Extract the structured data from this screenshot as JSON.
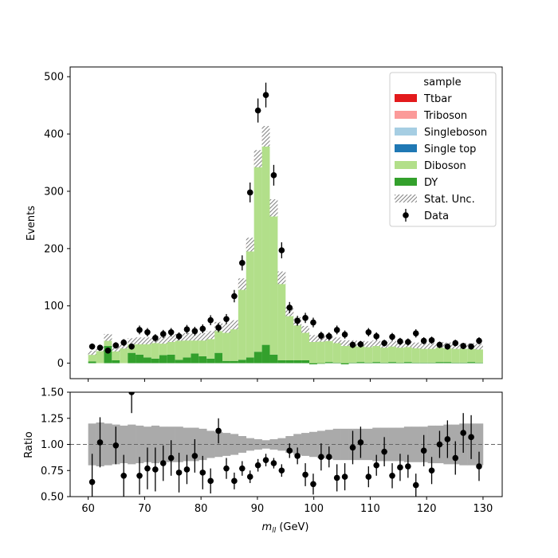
{
  "chart_data": [
    {
      "type": "bar",
      "stacked": true,
      "bin_width": 1.4,
      "x": [
        60.7,
        62.1,
        63.5,
        64.9,
        66.3,
        67.7,
        69.1,
        70.5,
        71.9,
        73.3,
        74.7,
        76.1,
        77.5,
        78.9,
        80.3,
        81.7,
        83.1,
        84.5,
        85.9,
        87.3,
        88.7,
        90.1,
        91.5,
        92.9,
        94.3,
        95.7,
        97.1,
        98.5,
        99.9,
        101.3,
        102.7,
        104.1,
        105.5,
        106.9,
        108.3,
        109.7,
        111.1,
        112.5,
        113.9,
        115.3,
        116.7,
        118.1,
        119.5,
        120.9,
        122.3,
        123.7,
        125.1,
        126.5,
        127.9,
        129.3
      ],
      "xlabel": "$m_{ll}$ (GeV)",
      "xlabel_main": "m",
      "xlabel_sub": "ll",
      "xlabel_unit": " (GeV)",
      "ylabel": "Events",
      "xlim": [
        56.8,
        133.4
      ],
      "ylim": [
        -27,
        517
      ],
      "xticks": [
        "60",
        "70",
        "80",
        "90",
        "100",
        "110",
        "120",
        "130"
      ],
      "xtick_values": [
        60,
        70,
        80,
        90,
        100,
        110,
        120,
        130
      ],
      "yticks": [
        "0",
        "100",
        "200",
        "300",
        "400",
        "500"
      ],
      "ytick_values": [
        0,
        100,
        200,
        300,
        400,
        500
      ],
      "legend_title": "sample",
      "legend_position": "upper right",
      "series": [
        {
          "name": "DY",
          "color": "#33a02c",
          "values": [
            3,
            0,
            30,
            5,
            0,
            18,
            15,
            10,
            8,
            14,
            15,
            6,
            10,
            17,
            12,
            8,
            18,
            4,
            4,
            6,
            10,
            20,
            32,
            15,
            5,
            5,
            5,
            5,
            -2,
            -1,
            2,
            1,
            -2,
            1,
            2,
            1,
            2,
            1,
            2,
            1,
            2,
            1,
            1,
            1,
            2,
            2,
            1,
            1,
            2,
            1
          ]
        },
        {
          "name": "Diboson",
          "color": "#b2df8a",
          "values": [
            15,
            25,
            15,
            20,
            30,
            20,
            23,
            28,
            32,
            25,
            27,
            38,
            35,
            28,
            33,
            40,
            45,
            55,
            60,
            128,
            192,
            330,
            355,
            250,
            140,
            83,
            67,
            53,
            44,
            42,
            41,
            38,
            36,
            33,
            32,
            32,
            32,
            31,
            32,
            31,
            31,
            30,
            29,
            29,
            30,
            29,
            29,
            29,
            28,
            28
          ]
        },
        {
          "name": "Single top",
          "color": "#1f78b4",
          "values": [
            0,
            0,
            0,
            0,
            0,
            0,
            0,
            0,
            0,
            0,
            0,
            0,
            0,
            0,
            0,
            0,
            0,
            0,
            0,
            0,
            0,
            0,
            0,
            0,
            0,
            0,
            0,
            0,
            0,
            0,
            0,
            0,
            0,
            0,
            0,
            0,
            0,
            0,
            0,
            0,
            0,
            0,
            0,
            0,
            0,
            0,
            0,
            0,
            0,
            0
          ]
        },
        {
          "name": "Singleboson",
          "color": "#a6cee3",
          "values": [
            0,
            0,
            0,
            0,
            0,
            0,
            0,
            0,
            0,
            0,
            0,
            0,
            0,
            0,
            0,
            0,
            0,
            0,
            0,
            0,
            0,
            0,
            0,
            0,
            0,
            0,
            0,
            0,
            0,
            0,
            0,
            0,
            0,
            0,
            0,
            0,
            0,
            0,
            0,
            0,
            0,
            0,
            0,
            0,
            0,
            0,
            0,
            0,
            0,
            0
          ]
        },
        {
          "name": "Triboson",
          "color": "#fb9a99",
          "values": [
            0,
            0,
            0,
            0,
            0,
            0,
            0,
            0,
            0,
            0,
            0,
            0,
            0,
            0,
            0,
            0,
            0,
            1,
            2,
            3,
            4,
            6,
            8,
            5,
            3,
            1,
            0,
            0,
            0,
            0,
            0,
            0,
            0,
            0,
            0,
            0,
            0,
            0,
            0,
            0,
            0,
            0,
            0,
            0,
            0,
            0,
            0,
            0,
            0,
            0
          ]
        },
        {
          "name": "Ttbar",
          "color": "#e31a1c",
          "values": [
            0,
            0,
            0,
            0,
            0,
            0,
            1,
            1,
            1,
            1,
            1,
            1,
            1,
            1,
            1,
            1,
            1,
            1,
            1,
            1,
            1,
            1,
            1,
            1,
            1,
            1,
            1,
            1,
            1,
            2,
            1,
            1,
            1,
            1,
            0,
            0,
            1,
            0,
            0,
            0,
            0,
            0,
            0,
            0,
            0,
            0,
            0,
            0,
            0,
            0
          ]
        }
      ],
      "stat_unc_label": "Stat. Unc.",
      "stat_unc": [
        3.5,
        4,
        6,
        4.5,
        4.5,
        5.5,
        6,
        6,
        6,
        6,
        6,
        6,
        6.5,
        6.5,
        6.5,
        7,
        8,
        8,
        8,
        10,
        12,
        15,
        18,
        15,
        11,
        8,
        7,
        6,
        6,
        5.5,
        5.5,
        5,
        5,
        5,
        5,
        5,
        5,
        5,
        5,
        5,
        5,
        5,
        5,
        5,
        5,
        5,
        5,
        5,
        5,
        5
      ],
      "data_label": "Data",
      "data": {
        "x": [
          60.7,
          62.1,
          63.5,
          64.9,
          66.3,
          67.7,
          69.1,
          70.5,
          71.9,
          73.3,
          74.7,
          76.1,
          77.5,
          78.9,
          80.3,
          81.7,
          83.1,
          84.5,
          85.9,
          87.3,
          88.7,
          90.1,
          91.5,
          92.9,
          94.3,
          95.7,
          97.1,
          98.5,
          99.9,
          101.3,
          102.7,
          104.1,
          105.5,
          106.9,
          108.3,
          109.7,
          111.1,
          112.5,
          113.9,
          115.3,
          116.7,
          118.1,
          119.5,
          120.9,
          122.3,
          123.7,
          125.1,
          126.5,
          127.9,
          129.3
        ],
        "y": [
          29,
          27,
          22,
          31,
          36,
          29,
          58,
          54,
          44,
          51,
          54,
          47,
          59,
          56,
          60,
          75,
          62,
          77,
          117,
          175,
          298,
          441,
          468,
          328,
          197,
          97,
          74,
          79,
          71,
          48,
          47,
          58,
          50,
          32,
          33,
          54,
          47,
          35,
          46,
          38,
          37,
          52,
          39,
          40,
          32,
          29,
          35,
          30,
          29,
          39
        ],
        "yerr": [
          5.4,
          5.2,
          4.7,
          5.6,
          6,
          5.4,
          7.6,
          7.3,
          6.6,
          7.1,
          7.3,
          6.9,
          7.7,
          7.5,
          7.7,
          8.7,
          7.9,
          8.8,
          10.8,
          13.2,
          17.3,
          21,
          21.6,
          18.1,
          14,
          9.8,
          8.6,
          8.9,
          8.4,
          6.9,
          6.9,
          7.6,
          7.1,
          5.7,
          5.7,
          7.3,
          6.9,
          5.9,
          6.8,
          6.2,
          6.1,
          7.2,
          6.2,
          6.3,
          5.7,
          5.4,
          5.9,
          5.5,
          5.4,
          6.2
        ]
      }
    },
    {
      "type": "scatter",
      "ylabel": "Ratio",
      "xlabel": "$m_{ll}$ (GeV)",
      "xlim": [
        56.8,
        133.4
      ],
      "ylim": [
        0.5,
        1.5
      ],
      "yticks": [
        "0.50",
        "0.75",
        "1.00",
        "1.25",
        "1.50"
      ],
      "ytick_values": [
        0.5,
        0.75,
        1.0,
        1.25,
        1.5
      ],
      "reference_line": 1.0,
      "ratio": {
        "x": [
          60.7,
          62.1,
          64.9,
          66.3,
          67.7,
          69.1,
          70.5,
          71.9,
          73.3,
          74.7,
          76.1,
          77.5,
          78.9,
          80.3,
          81.7,
          83.1,
          84.5,
          85.9,
          87.3,
          88.7,
          90.1,
          91.5,
          92.9,
          94.3,
          95.7,
          97.1,
          98.5,
          99.9,
          101.3,
          102.7,
          104.1,
          105.5,
          106.9,
          108.3,
          109.7,
          111.1,
          112.5,
          113.9,
          115.3,
          116.7,
          118.1,
          119.5,
          120.9,
          122.3,
          123.7,
          125.1,
          126.5,
          127.9,
          129.3
        ],
        "y": [
          0.64,
          1.02,
          0.99,
          0.7,
          1.5,
          0.7,
          0.77,
          0.76,
          0.82,
          0.87,
          0.73,
          0.76,
          0.89,
          0.73,
          0.65,
          1.13,
          0.77,
          0.65,
          0.77,
          0.69,
          0.8,
          0.85,
          0.82,
          0.75,
          0.94,
          0.89,
          0.71,
          0.62,
          0.88,
          0.88,
          0.68,
          0.69,
          0.97,
          1.02,
          0.69,
          0.8,
          0.93,
          0.7,
          0.78,
          0.79,
          0.61,
          0.94,
          0.75,
          1.0,
          1.05,
          0.87,
          1.11,
          1.07,
          0.79
        ],
        "yerr": [
          0.27,
          0.24,
          0.18,
          0.2,
          0.2,
          0.18,
          0.2,
          0.21,
          0.17,
          0.17,
          0.19,
          0.14,
          0.16,
          0.16,
          0.12,
          0.12,
          0.1,
          0.08,
          0.07,
          0.06,
          0.06,
          0.06,
          0.05,
          0.06,
          0.07,
          0.08,
          0.11,
          0.1,
          0.13,
          0.1,
          0.13,
          0.13,
          0.16,
          0.15,
          0.1,
          0.1,
          0.14,
          0.12,
          0.13,
          0.11,
          0.11,
          0.15,
          0.13,
          0.13,
          0.18,
          0.16,
          0.19,
          0.21,
          0.14
        ]
      },
      "stat_unc_band": [
        0.2,
        0.21,
        0.2,
        0.19,
        0.18,
        0.19,
        0.18,
        0.17,
        0.18,
        0.17,
        0.17,
        0.17,
        0.16,
        0.16,
        0.15,
        0.13,
        0.12,
        0.11,
        0.1,
        0.08,
        0.06,
        0.05,
        0.04,
        0.05,
        0.06,
        0.08,
        0.1,
        0.11,
        0.12,
        0.13,
        0.14,
        0.15,
        0.15,
        0.15,
        0.15,
        0.15,
        0.16,
        0.16,
        0.16,
        0.16,
        0.17,
        0.17,
        0.17,
        0.18,
        0.18,
        0.19,
        0.19,
        0.2,
        0.2,
        0.2
      ],
      "band_color": "#aaaaaa"
    }
  ]
}
